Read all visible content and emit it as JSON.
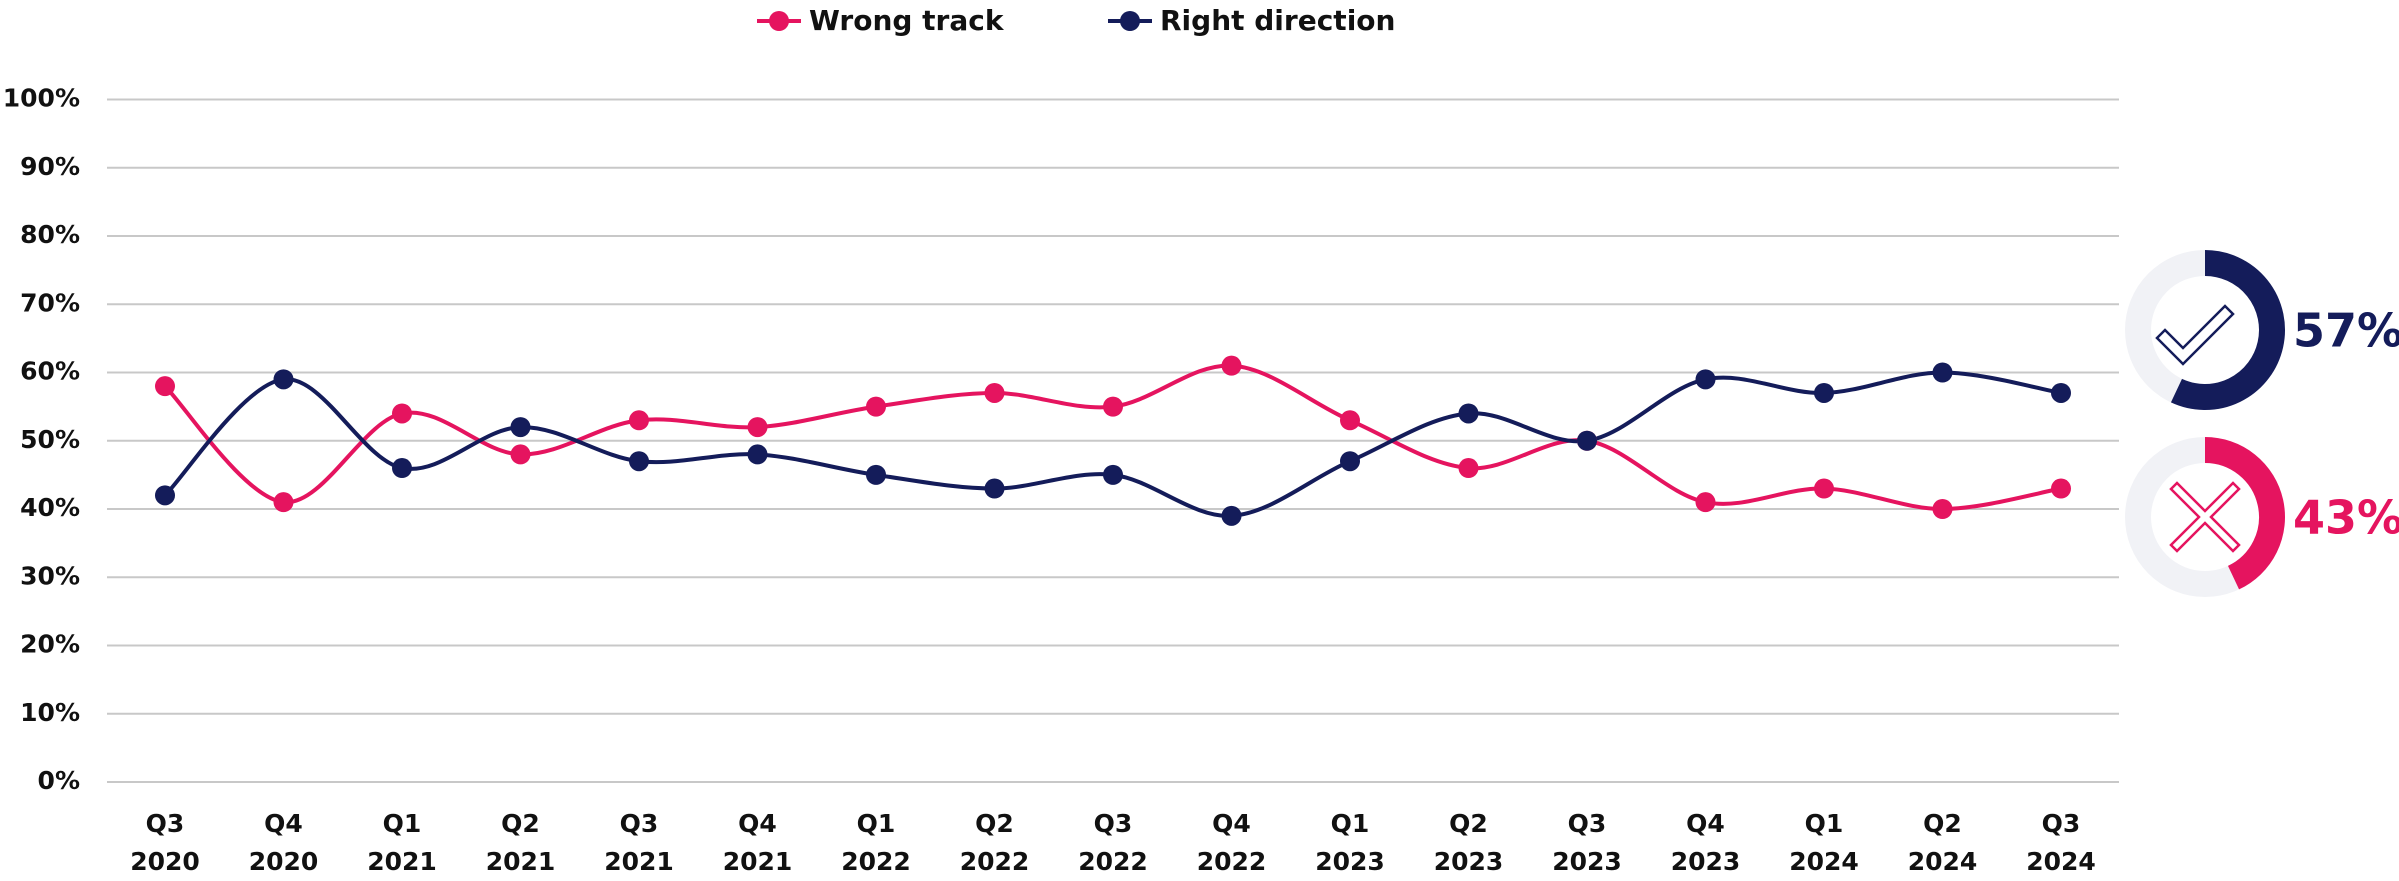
{
  "chart_data": {
    "type": "line",
    "categories": [
      "Q3 2020",
      "Q4 2020",
      "Q1 2021",
      "Q2 2021",
      "Q3 2021",
      "Q4 2021",
      "Q1 2022",
      "Q2 2022",
      "Q3 2022",
      "Q4 2022",
      "Q1 2023",
      "Q2 2023",
      "Q3 2023",
      "Q4 2023",
      "Q1 2024",
      "Q2 2024",
      "Q3 2024"
    ],
    "series": [
      {
        "name": "Wrong track",
        "color": "#e5145f",
        "values": [
          58,
          41,
          54,
          48,
          53,
          52,
          55,
          57,
          55,
          61,
          53,
          46,
          50,
          41,
          43,
          40,
          43
        ]
      },
      {
        "name": "Right direction",
        "color": "#141c5a",
        "values": [
          42,
          59,
          46,
          52,
          47,
          48,
          45,
          43,
          45,
          39,
          47,
          54,
          50,
          59,
          57,
          60,
          57
        ]
      }
    ],
    "ylim": [
      0,
      100
    ],
    "yticks": [
      {
        "value": 0,
        "label": "0%"
      },
      {
        "value": 10,
        "label": "10%"
      },
      {
        "value": 20,
        "label": "20%"
      },
      {
        "value": 30,
        "label": "30%"
      },
      {
        "value": 40,
        "label": "40%"
      },
      {
        "value": 50,
        "label": "50%"
      },
      {
        "value": 60,
        "label": "60%"
      },
      {
        "value": 70,
        "label": "70%"
      },
      {
        "value": 80,
        "label": "80%"
      },
      {
        "value": 90,
        "label": "90%"
      },
      {
        "value": 100,
        "label": "100%"
      }
    ],
    "grid": true,
    "legend": "top",
    "donuts": [
      {
        "value": 57,
        "label": "57%",
        "color": "#141c5a"
      },
      {
        "value": 43,
        "label": "43%",
        "color": "#e5145f"
      }
    ]
  }
}
